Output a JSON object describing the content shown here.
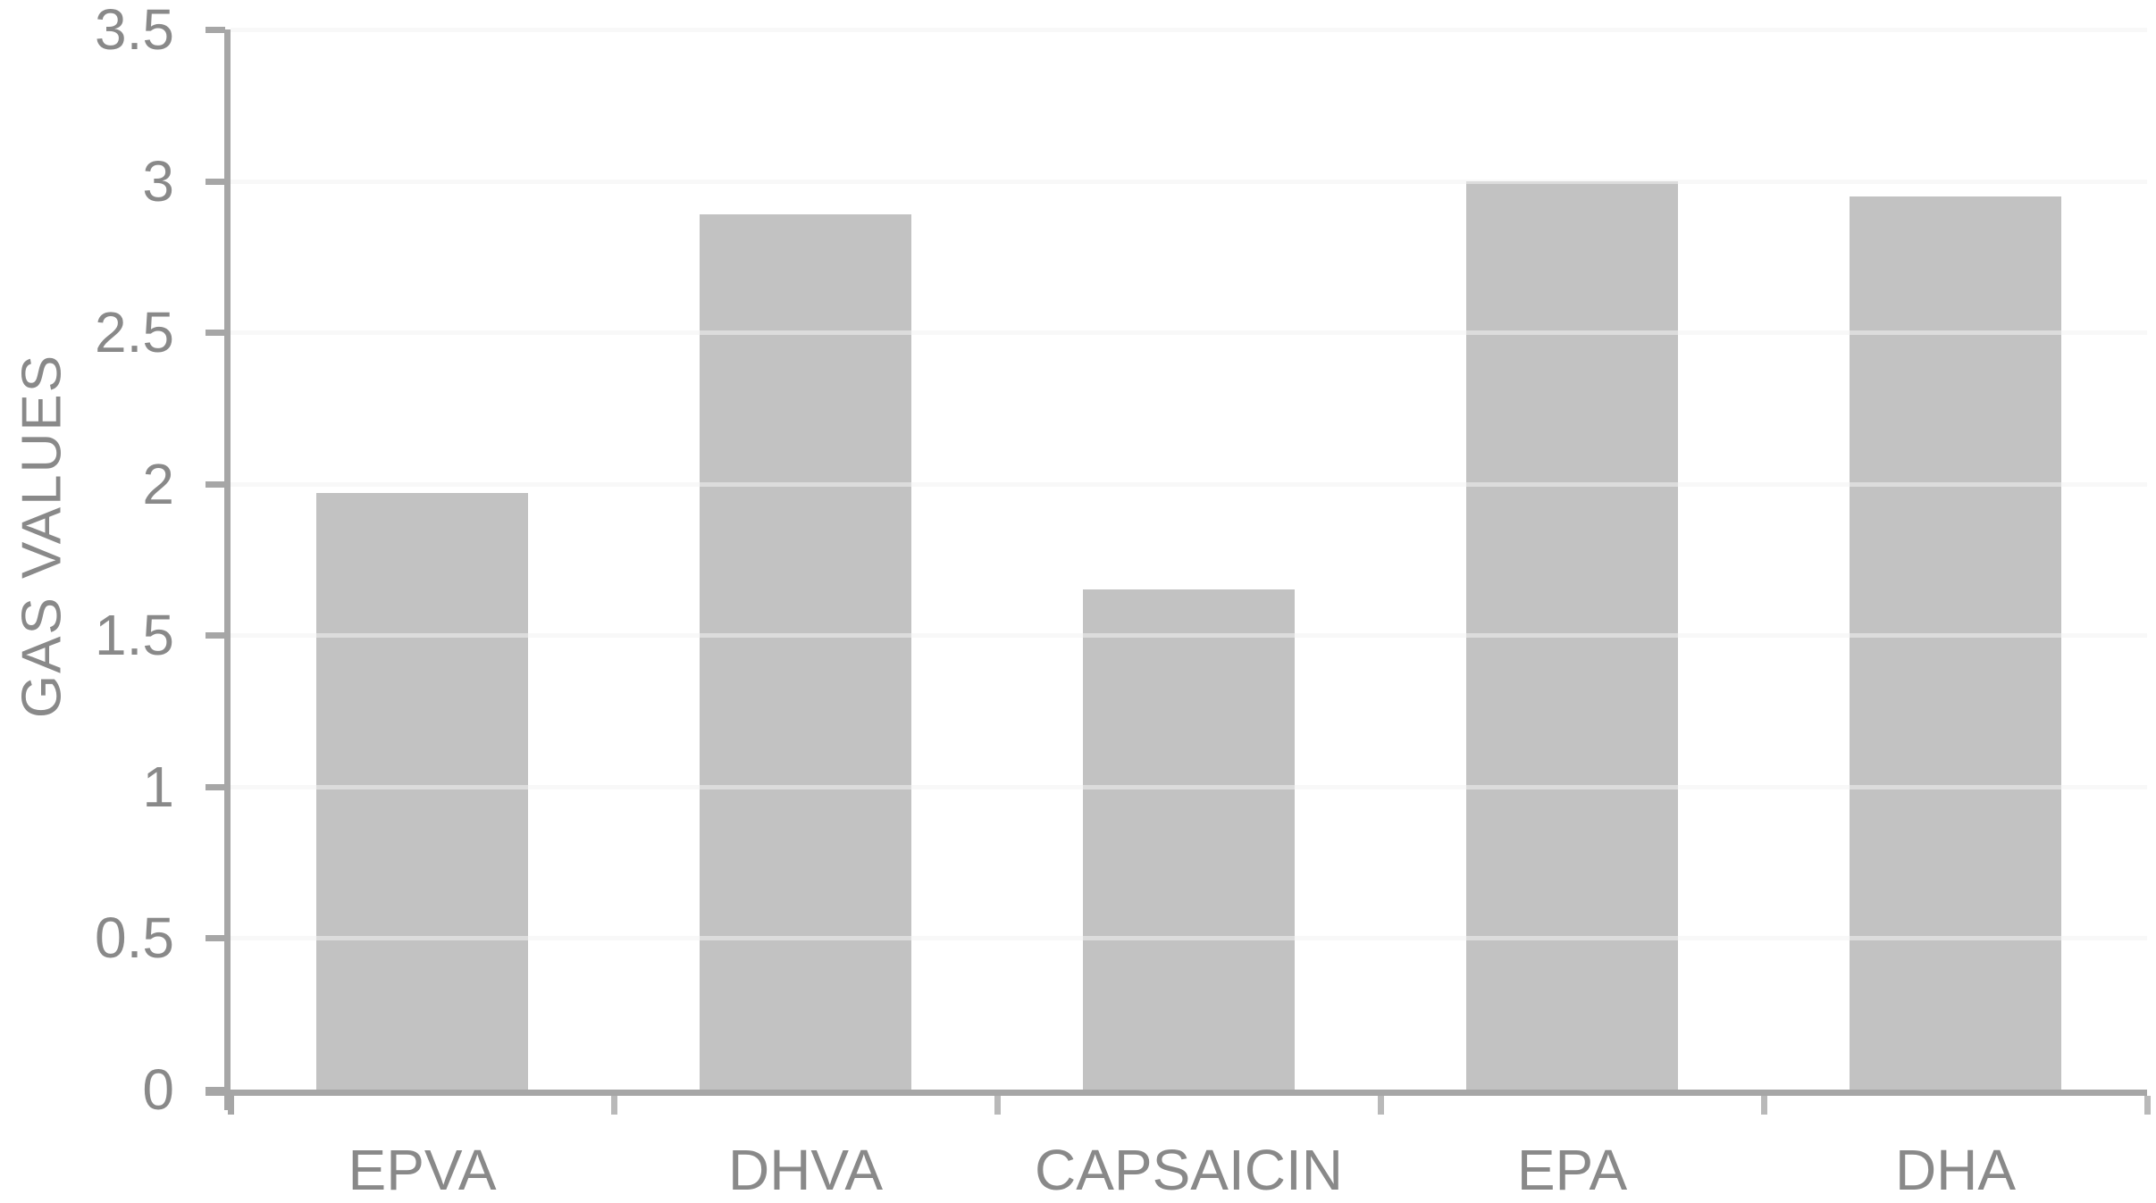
{
  "chart_data": {
    "type": "bar",
    "categories": [
      "EPVA",
      "DHVA",
      "CAPSAICIN",
      "EPA",
      "DHA"
    ],
    "values": [
      1.97,
      2.89,
      1.65,
      3.0,
      2.95
    ],
    "title": "",
    "xlabel": "",
    "ylabel": "GAS VALUES",
    "ylim": [
      0,
      3.5
    ],
    "ytick_step": 0.5,
    "ytick_labels": [
      "0",
      "0.5",
      "1",
      "1.5",
      "2",
      "2.5",
      "3",
      "3.5"
    ],
    "grid": true,
    "legend": false,
    "colors": {
      "bar_fill": "#c2c2c2",
      "axis_line": "#a6a6a6",
      "x_tick": "#b9b9b9",
      "gridline": "#f2f2f2",
      "gridline_overlay": "rgba(242,242,242,0.55)",
      "label_text": "#898989",
      "background": "#ffffff"
    }
  }
}
